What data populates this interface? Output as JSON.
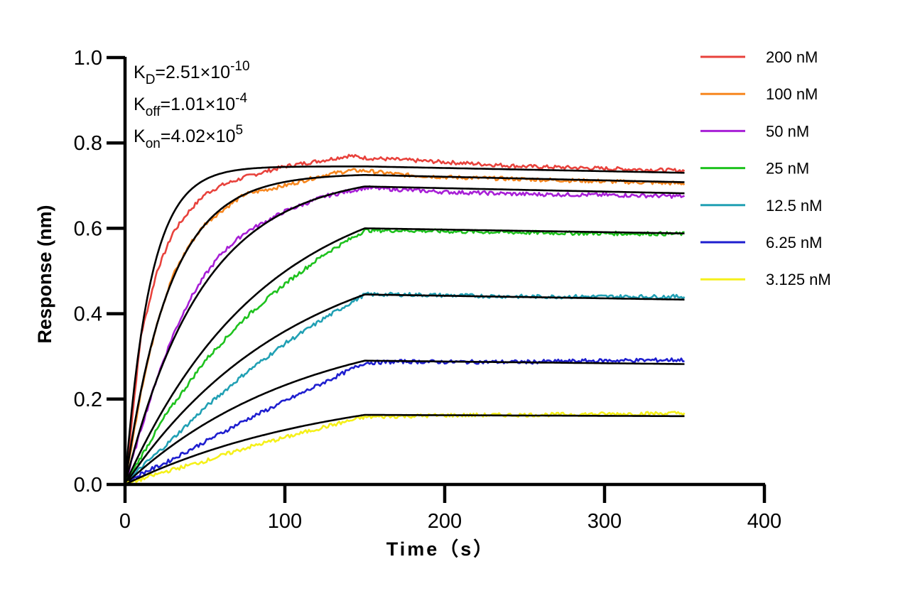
{
  "chart_data": {
    "type": "line",
    "title": "",
    "xlabel": "Time（s）",
    "ylabel": "Response (nm)",
    "xlim": [
      0,
      400
    ],
    "ylim": [
      0,
      1.0
    ],
    "x_ticks": [
      "0",
      "100",
      "200",
      "300",
      "400"
    ],
    "y_ticks": [
      "0.0",
      "0.2",
      "0.4",
      "0.6",
      "0.8",
      "1.0"
    ],
    "grid": false,
    "legend_position": "top-right",
    "annotations": [
      {
        "base": "K",
        "sub": "D",
        "eq": "=2.51×10",
        "sup": "-10"
      },
      {
        "base": "K",
        "sub": "off",
        "eq": "=1.01×10",
        "sup": "-4"
      },
      {
        "base": "K",
        "sub": "on",
        "eq": "=4.02×10",
        "sup": "5"
      }
    ],
    "association_end": 150,
    "x_end": 350,
    "series": [
      {
        "name": "200 nM",
        "color": "#e8423c",
        "fit_end": 0.745,
        "fit_final": 0.73,
        "data": [
          [
            0,
            0
          ],
          [
            10,
            0.35
          ],
          [
            20,
            0.5
          ],
          [
            30,
            0.59
          ],
          [
            40,
            0.64
          ],
          [
            50,
            0.68
          ],
          [
            60,
            0.7
          ],
          [
            75,
            0.72
          ],
          [
            100,
            0.745
          ],
          [
            125,
            0.76
          ],
          [
            140,
            0.77
          ],
          [
            150,
            0.765
          ],
          [
            175,
            0.76
          ],
          [
            200,
            0.755
          ],
          [
            250,
            0.745
          ],
          [
            300,
            0.74
          ],
          [
            350,
            0.735
          ]
        ]
      },
      {
        "name": "100 nM",
        "color": "#f7871f",
        "fit_end": 0.725,
        "fit_final": 0.708,
        "data": [
          [
            0,
            0
          ],
          [
            10,
            0.22
          ],
          [
            20,
            0.38
          ],
          [
            30,
            0.49
          ],
          [
            40,
            0.56
          ],
          [
            50,
            0.61
          ],
          [
            60,
            0.64
          ],
          [
            75,
            0.68
          ],
          [
            100,
            0.7
          ],
          [
            125,
            0.725
          ],
          [
            140,
            0.735
          ],
          [
            150,
            0.735
          ],
          [
            175,
            0.725
          ],
          [
            200,
            0.72
          ],
          [
            250,
            0.715
          ],
          [
            300,
            0.71
          ],
          [
            350,
            0.705
          ]
        ]
      },
      {
        "name": "50 nM",
        "color": "#a71fd6",
        "fit_end": 0.698,
        "fit_final": 0.682,
        "data": [
          [
            0,
            0
          ],
          [
            10,
            0.13
          ],
          [
            20,
            0.25
          ],
          [
            30,
            0.35
          ],
          [
            40,
            0.43
          ],
          [
            50,
            0.49
          ],
          [
            60,
            0.54
          ],
          [
            75,
            0.59
          ],
          [
            100,
            0.64
          ],
          [
            125,
            0.675
          ],
          [
            150,
            0.695
          ],
          [
            175,
            0.69
          ],
          [
            200,
            0.685
          ],
          [
            250,
            0.68
          ],
          [
            300,
            0.678
          ],
          [
            350,
            0.675
          ]
        ]
      },
      {
        "name": "25 nM",
        "color": "#1ec21e",
        "fit_end": 0.6,
        "fit_final": 0.588,
        "data": [
          [
            0,
            0
          ],
          [
            10,
            0.065
          ],
          [
            25,
            0.16
          ],
          [
            50,
            0.29
          ],
          [
            75,
            0.39
          ],
          [
            100,
            0.47
          ],
          [
            125,
            0.54
          ],
          [
            150,
            0.595
          ],
          [
            175,
            0.595
          ],
          [
            200,
            0.593
          ],
          [
            250,
            0.59
          ],
          [
            300,
            0.588
          ],
          [
            350,
            0.587
          ]
        ]
      },
      {
        "name": "12.5 nM",
        "color": "#21a0b4",
        "fit_end": 0.445,
        "fit_final": 0.433,
        "data": [
          [
            0,
            0
          ],
          [
            10,
            0.04
          ],
          [
            25,
            0.09
          ],
          [
            50,
            0.18
          ],
          [
            75,
            0.26
          ],
          [
            100,
            0.33
          ],
          [
            125,
            0.39
          ],
          [
            150,
            0.445
          ],
          [
            175,
            0.445
          ],
          [
            200,
            0.443
          ],
          [
            250,
            0.44
          ],
          [
            300,
            0.44
          ],
          [
            350,
            0.44
          ]
        ]
      },
      {
        "name": "6.25 nM",
        "color": "#1e1ecf",
        "fit_end": 0.29,
        "fit_final": 0.282,
        "data": [
          [
            0,
            0
          ],
          [
            10,
            0.025
          ],
          [
            25,
            0.05
          ],
          [
            50,
            0.1
          ],
          [
            75,
            0.15
          ],
          [
            100,
            0.195
          ],
          [
            125,
            0.24
          ],
          [
            150,
            0.285
          ],
          [
            175,
            0.288
          ],
          [
            200,
            0.287
          ],
          [
            250,
            0.287
          ],
          [
            300,
            0.29
          ],
          [
            350,
            0.292
          ]
        ]
      },
      {
        "name": "3.125 nM",
        "color": "#f5f01a",
        "fit_end": 0.163,
        "fit_final": 0.16,
        "data": [
          [
            0,
            0
          ],
          [
            10,
            0.012
          ],
          [
            25,
            0.03
          ],
          [
            50,
            0.055
          ],
          [
            75,
            0.085
          ],
          [
            100,
            0.11
          ],
          [
            125,
            0.135
          ],
          [
            150,
            0.158
          ],
          [
            175,
            0.16
          ],
          [
            200,
            0.162
          ],
          [
            250,
            0.163
          ],
          [
            300,
            0.165
          ],
          [
            350,
            0.167
          ]
        ]
      }
    ]
  }
}
